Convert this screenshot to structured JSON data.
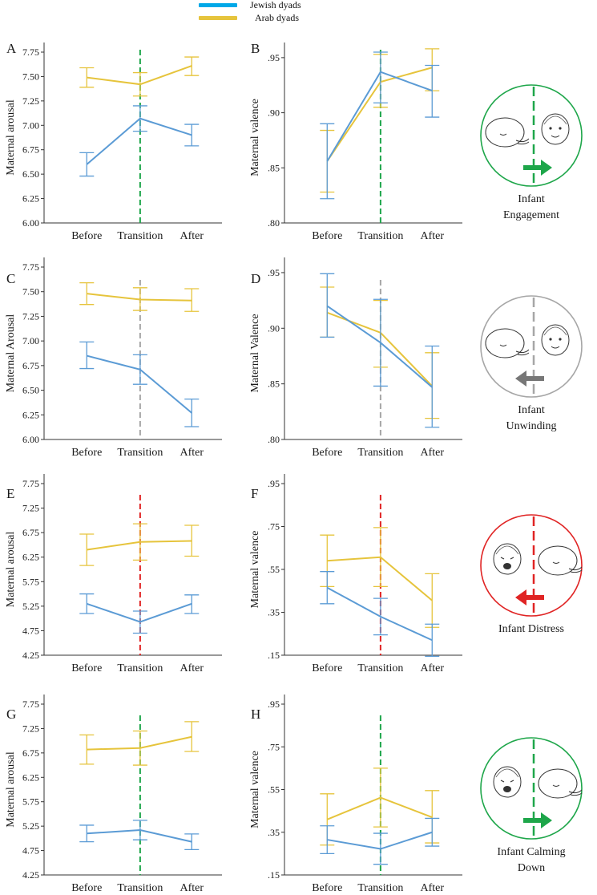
{
  "legend": {
    "jewish": "Jewish dyads",
    "arab": "Arab dyads"
  },
  "colors": {
    "jewish": "#5b9bd5",
    "jewish_legend": "#00a8e8",
    "arab": "#e6c43c",
    "green": "#1ea64a",
    "gray": "#a6a6a6",
    "red": "#e02424",
    "axis": "#333333"
  },
  "icons": [
    {
      "label_lines": [
        "Infant",
        "Engagement"
      ],
      "ring": "green",
      "arrow": "right",
      "icon_name": "infant-engagement-icon"
    },
    {
      "label_lines": [
        "Infant",
        "Unwinding"
      ],
      "ring": "gray",
      "arrow": "left",
      "icon_name": "infant-unwinding-icon"
    },
    {
      "label_lines": [
        "Infant Distress"
      ],
      "ring": "red",
      "arrow": "left",
      "icon_name": "infant-distress-icon"
    },
    {
      "label_lines": [
        "Infant Calming",
        "Down"
      ],
      "ring": "green",
      "arrow": "right",
      "icon_name": "infant-calming-down-icon"
    }
  ],
  "chart_data": [
    {
      "panel": "A",
      "type": "line",
      "ylabel": "Maternal arousal",
      "categories": [
        "Before",
        "Transition",
        "After"
      ],
      "ylim": [
        6.0,
        7.75
      ],
      "yticks": [
        "6.00",
        "6.25",
        "6.50",
        "6.75",
        "7.00",
        "7.25",
        "7.50",
        "7.75"
      ],
      "tick_values": [
        6.0,
        6.25,
        6.5,
        6.75,
        7.0,
        7.25,
        7.5,
        7.75
      ],
      "divider": "green",
      "series": [
        {
          "name": "Jewish dyads",
          "values": [
            6.6,
            7.07,
            6.9
          ],
          "err_low": [
            6.48,
            6.94,
            6.79
          ],
          "err_high": [
            6.72,
            7.2,
            7.01
          ]
        },
        {
          "name": "Arab dyads",
          "values": [
            7.49,
            7.42,
            7.61
          ],
          "err_low": [
            7.39,
            7.3,
            7.51
          ],
          "err_high": [
            7.59,
            7.54,
            7.7
          ]
        }
      ]
    },
    {
      "panel": "B",
      "type": "line",
      "ylabel": "Maternal valence",
      "categories": [
        "Before",
        "Transition",
        "After"
      ],
      "ylim": [
        0.8,
        0.955
      ],
      "yticks": [
        ".80",
        ".85",
        ".90",
        ".95"
      ],
      "tick_values": [
        0.8,
        0.85,
        0.9,
        0.95
      ],
      "divider": "green",
      "series": [
        {
          "name": "Jewish dyads",
          "values": [
            0.856,
            0.937,
            0.92
          ],
          "err_low": [
            0.822,
            0.909,
            0.896
          ],
          "err_high": [
            0.89,
            0.955,
            0.943
          ]
        },
        {
          "name": "Arab dyads",
          "values": [
            0.856,
            0.928,
            0.941
          ],
          "err_low": [
            0.828,
            0.905,
            0.92
          ],
          "err_high": [
            0.884,
            0.953,
            0.958
          ]
        }
      ]
    },
    {
      "panel": "C",
      "type": "line",
      "ylabel": "Maternal Arousal",
      "categories": [
        "Before",
        "Transition",
        "After"
      ],
      "ylim": [
        6.0,
        7.75
      ],
      "yticks": [
        "6.00",
        "6.25",
        "6.50",
        "6.75",
        "7.00",
        "7.25",
        "7.50",
        "7.75"
      ],
      "tick_values": [
        6.0,
        6.25,
        6.5,
        6.75,
        7.0,
        7.25,
        7.5,
        7.75
      ],
      "divider": "gray",
      "series": [
        {
          "name": "Jewish dyads",
          "values": [
            6.85,
            6.71,
            6.27
          ],
          "err_low": [
            6.72,
            6.56,
            6.13
          ],
          "err_high": [
            6.99,
            6.86,
            6.41
          ]
        },
        {
          "name": "Arab dyads",
          "values": [
            7.48,
            7.42,
            7.41
          ],
          "err_low": [
            7.37,
            7.31,
            7.3
          ],
          "err_high": [
            7.59,
            7.54,
            7.53
          ]
        }
      ]
    },
    {
      "panel": "D",
      "type": "line",
      "ylabel": "Maternal Valence",
      "categories": [
        "Before",
        "Transition",
        "After"
      ],
      "ylim": [
        0.8,
        0.955
      ],
      "yticks": [
        ".80",
        ".85",
        ".90",
        ".95"
      ],
      "tick_values": [
        0.8,
        0.85,
        0.9,
        0.95
      ],
      "divider": "gray",
      "series": [
        {
          "name": "Jewish dyads",
          "values": [
            0.92,
            0.887,
            0.847
          ],
          "err_low": [
            0.892,
            0.848,
            0.811
          ],
          "err_high": [
            0.949,
            0.926,
            0.884
          ]
        },
        {
          "name": "Arab dyads",
          "values": [
            0.914,
            0.896,
            0.848
          ],
          "err_low": [
            0.892,
            0.865,
            0.819
          ],
          "err_high": [
            0.937,
            0.925,
            0.878
          ]
        }
      ]
    },
    {
      "panel": "E",
      "type": "line",
      "ylabel": "Maternal arousal",
      "categories": [
        "Before",
        "Transition",
        "After"
      ],
      "ylim": [
        4.25,
        7.75
      ],
      "yticks": [
        "4.25",
        "4.75",
        "5.25",
        "5.75",
        "6.25",
        "6.75",
        "7.25",
        "7.75"
      ],
      "tick_values": [
        4.25,
        4.75,
        5.25,
        5.75,
        6.25,
        6.75,
        7.25,
        7.75
      ],
      "divider": "red",
      "series": [
        {
          "name": "Jewish dyads",
          "values": [
            5.3,
            4.93,
            5.3
          ],
          "err_low": [
            5.1,
            4.7,
            5.1
          ],
          "err_high": [
            5.5,
            5.15,
            5.48
          ]
        },
        {
          "name": "Arab dyads",
          "values": [
            6.4,
            6.56,
            6.58
          ],
          "err_low": [
            6.08,
            6.19,
            6.27
          ],
          "err_high": [
            6.72,
            6.93,
            6.9
          ]
        }
      ]
    },
    {
      "panel": "F",
      "type": "line",
      "ylabel": "Maternal valence",
      "categories": [
        "Before",
        "Transition",
        "After"
      ],
      "ylim": [
        0.15,
        0.95
      ],
      "yticks": [
        ".15",
        ".35",
        ".55",
        ".75",
        ".95"
      ],
      "tick_values": [
        0.15,
        0.35,
        0.55,
        0.75,
        0.95
      ],
      "divider": "red",
      "series": [
        {
          "name": "Jewish dyads",
          "values": [
            0.465,
            0.33,
            0.22
          ],
          "err_low": [
            0.39,
            0.245,
            0.145
          ],
          "err_high": [
            0.54,
            0.415,
            0.295
          ]
        },
        {
          "name": "Arab dyads",
          "values": [
            0.59,
            0.607,
            0.405
          ],
          "err_low": [
            0.47,
            0.47,
            0.28
          ],
          "err_high": [
            0.71,
            0.745,
            0.53
          ]
        }
      ]
    },
    {
      "panel": "G",
      "type": "line",
      "ylabel": "Maternal arousal",
      "categories": [
        "Before",
        "Transition",
        "After"
      ],
      "ylim": [
        4.25,
        7.75
      ],
      "yticks": [
        "4.25",
        "4.75",
        "5.25",
        "5.75",
        "6.25",
        "6.75",
        "7.25",
        "7.75"
      ],
      "tick_values": [
        4.25,
        4.75,
        5.25,
        5.75,
        6.25,
        6.75,
        7.25,
        7.75
      ],
      "divider": "green",
      "series": [
        {
          "name": "Jewish dyads",
          "values": [
            5.1,
            5.17,
            4.93
          ],
          "err_low": [
            4.93,
            4.97,
            4.77
          ],
          "err_high": [
            5.27,
            5.37,
            5.09
          ]
        },
        {
          "name": "Arab dyads",
          "values": [
            6.82,
            6.85,
            7.08
          ],
          "err_low": [
            6.52,
            6.5,
            6.78
          ],
          "err_high": [
            7.12,
            7.2,
            7.39
          ]
        }
      ]
    },
    {
      "panel": "H",
      "type": "line",
      "ylabel": "Maternal valence",
      "categories": [
        "Before",
        "Transition",
        "After"
      ],
      "ylim": [
        0.15,
        0.95
      ],
      "yticks": [
        ".15",
        ".35",
        ".55",
        ".75",
        ".95"
      ],
      "tick_values": [
        0.15,
        0.35,
        0.55,
        0.75,
        0.95
      ],
      "divider": "green",
      "series": [
        {
          "name": "Jewish dyads",
          "values": [
            0.315,
            0.272,
            0.35
          ],
          "err_low": [
            0.25,
            0.2,
            0.285
          ],
          "err_high": [
            0.38,
            0.345,
            0.415
          ]
        },
        {
          "name": "Arab dyads",
          "values": [
            0.41,
            0.512,
            0.42
          ],
          "err_low": [
            0.29,
            0.375,
            0.3
          ],
          "err_high": [
            0.53,
            0.65,
            0.545
          ]
        }
      ]
    }
  ]
}
